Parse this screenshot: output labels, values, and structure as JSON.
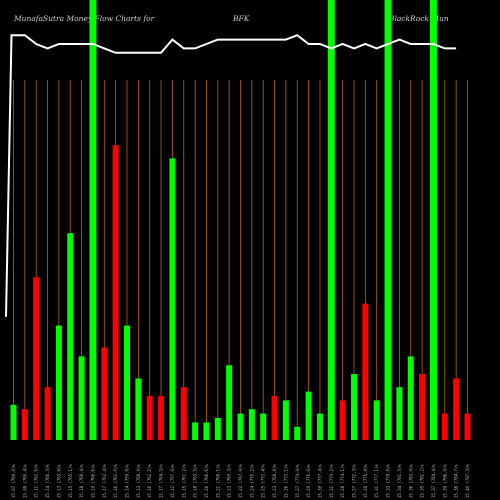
{
  "chart_data": {
    "type": "bar",
    "title_parts": [
      "MunafaSutra  Money Flow  Charts for",
      "BFK",
      "(BlackRock Mun"
    ],
    "colors": {
      "up": "#00ff00",
      "down": "#ff0000",
      "grid": "#b8660b",
      "price_line": "#ffffff",
      "background": "#000000"
    },
    "ylim": [
      0,
      100
    ],
    "bars": [
      {
        "value": 8,
        "color": "up"
      },
      {
        "value": 7,
        "color": "down"
      },
      {
        "value": 37,
        "color": "down"
      },
      {
        "value": 12,
        "color": "down"
      },
      {
        "value": 26,
        "color": "up"
      },
      {
        "value": 47,
        "color": "up"
      },
      {
        "value": 19,
        "color": "up"
      },
      {
        "value": 100,
        "color": "up"
      },
      {
        "value": 21,
        "color": "down"
      },
      {
        "value": 67,
        "color": "down"
      },
      {
        "value": 26,
        "color": "up"
      },
      {
        "value": 14,
        "color": "up"
      },
      {
        "value": 10,
        "color": "down"
      },
      {
        "value": 10,
        "color": "down"
      },
      {
        "value": 64,
        "color": "up"
      },
      {
        "value": 12,
        "color": "down"
      },
      {
        "value": 4,
        "color": "up"
      },
      {
        "value": 4,
        "color": "up"
      },
      {
        "value": 5,
        "color": "up"
      },
      {
        "value": 17,
        "color": "up"
      },
      {
        "value": 6,
        "color": "up"
      },
      {
        "value": 7,
        "color": "up"
      },
      {
        "value": 6,
        "color": "up"
      },
      {
        "value": 10,
        "color": "down"
      },
      {
        "value": 9,
        "color": "up"
      },
      {
        "value": 3,
        "color": "up"
      },
      {
        "value": 11,
        "color": "up"
      },
      {
        "value": 6,
        "color": "up"
      },
      {
        "value": 100,
        "color": "up"
      },
      {
        "value": 9,
        "color": "down"
      },
      {
        "value": 15,
        "color": "up"
      },
      {
        "value": 31,
        "color": "down"
      },
      {
        "value": 9,
        "color": "up"
      },
      {
        "value": 100,
        "color": "up"
      },
      {
        "value": 12,
        "color": "up"
      },
      {
        "value": 19,
        "color": "up"
      },
      {
        "value": 15,
        "color": "down"
      },
      {
        "value": 100,
        "color": "up"
      },
      {
        "value": 6,
        "color": "down"
      },
      {
        "value": 14,
        "color": "down"
      },
      {
        "value": 6,
        "color": "down"
      }
    ],
    "price_line": [
      28,
      92,
      92,
      90,
      89,
      90,
      90,
      90,
      90,
      89,
      88,
      88,
      88,
      88,
      88,
      91,
      89,
      89,
      90,
      91,
      91,
      91,
      91,
      91,
      91,
      91,
      92,
      90,
      90,
      89,
      90,
      89,
      90,
      89,
      90,
      91,
      90,
      90,
      90,
      89,
      89
    ],
    "x_tick_labels": [
      "15.07 (760.0)%",
      "15.08 (760.4)%",
      "15.11 (762.6)%",
      "15.14 (766.3)%",
      "15.13 (763.8)%",
      "15.15 (765.1)%",
      "15.18 (768.4)%",
      "15.19 (766.6)%",
      "15.17 (762.4)%",
      "15.16 (761.0)%",
      "15.14 (759.8)%",
      "15.13 (758.9)%",
      "15.16 (762.2)%",
      "15.17 (764.5)%",
      "15.12 (757.0)%",
      "15.15 (761.2)%",
      "15.18 (763.5)%",
      "15.20 (766.6)%",
      "15.21 (768.1)%",
      "15.23 (769.3)%",
      "15.22 (767.0)%",
      "15.24 (770.2)%",
      "15.25 (772.4)%",
      "15.23 (768.8)%",
      "15.26 (773.1)%",
      "15.27 (774.9)%",
      "15.29 (776.0)%",
      "15.30 (777.4)%",
      "15.31 (779.2)%",
      "15.28 (774.1)%",
      "15.27 (772.3)%",
      "15.29 (775.8)%",
      "15.31 (777.1)%",
      "15.33 (779.8)%",
      "15.34 (781.5)%",
      "15.36 (783.0)%",
      "15.35 (781.2)%",
      "15.37 (784.4)%",
      "15.39 (786.0)%",
      "15.38 (784.7)%",
      "15.40 (787.3)%"
    ]
  }
}
